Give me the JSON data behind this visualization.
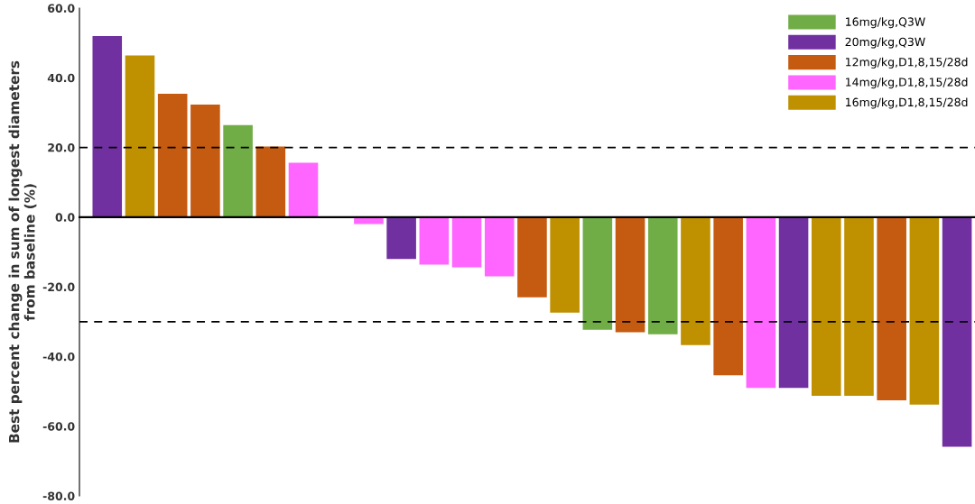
{
  "chart_data": {
    "type": "bar",
    "ylabel": "Best percent change in sum of longest diameters\nfrom baseline (%)",
    "categories": [
      null,
      null,
      null,
      null,
      null,
      null,
      null,
      null,
      null,
      null,
      null,
      null,
      null,
      null,
      null,
      null,
      null,
      null,
      null,
      null,
      null,
      null,
      null,
      null,
      null,
      null,
      null
    ],
    "series": [
      {
        "name": "16mg/kg,Q3W",
        "color": "#70ad47",
        "values": [
          null,
          null,
          null,
          null,
          26.4,
          null,
          null,
          null,
          null,
          null,
          null,
          null,
          null,
          null,
          null,
          -32.3,
          null,
          -33.6,
          null,
          null,
          null,
          null,
          null,
          null,
          null,
          null,
          null
        ]
      },
      {
        "name": "20mg/kg,Q3W",
        "color": "#7030a0",
        "values": [
          52,
          null,
          null,
          null,
          null,
          null,
          null,
          null,
          null,
          -12,
          null,
          null,
          null,
          null,
          null,
          null,
          null,
          null,
          null,
          null,
          null,
          -49,
          null,
          null,
          null,
          null,
          -65.9
        ]
      },
      {
        "name": "12mg/kg,D1,8,15/28d",
        "color": "#c55a11",
        "values": [
          null,
          null,
          35.4,
          32.3,
          null,
          20.3,
          null,
          null,
          null,
          null,
          null,
          null,
          null,
          -23,
          null,
          null,
          -33,
          null,
          null,
          -45.4,
          null,
          null,
          null,
          null,
          -52.6,
          null,
          null
        ]
      },
      {
        "name": "14mg/kg,D1,8,15/28d",
        "color": "#ff66ff",
        "values": [
          null,
          null,
          null,
          null,
          null,
          null,
          15.6,
          null,
          -2,
          null,
          -13.6,
          -14.4,
          -17,
          null,
          null,
          null,
          null,
          null,
          null,
          null,
          -49,
          null,
          null,
          null,
          null,
          null,
          null
        ]
      },
      {
        "name": "16mg/kg,D1,8,15/28d",
        "color": "#bf9000",
        "values": [
          null,
          46.4,
          null,
          null,
          null,
          null,
          null,
          null,
          null,
          null,
          null,
          null,
          null,
          null,
          -27.4,
          null,
          null,
          null,
          -36.7,
          null,
          null,
          null,
          -51.3,
          -51.3,
          null,
          -53.8,
          null
        ]
      }
    ],
    "ylim": [
      -80,
      60
    ],
    "yticks": [
      {
        "value": -80,
        "label": "-80.0"
      },
      {
        "value": -60,
        "label": "-60.0"
      },
      {
        "value": -40,
        "label": "-40.0"
      },
      {
        "value": -20,
        "label": "-20.0"
      },
      {
        "value": 0,
        "label": "0.0"
      },
      {
        "value": 20,
        "label": "20.0"
      },
      {
        "value": 40,
        "label": "40.0"
      },
      {
        "value": 60,
        "label": "60.0"
      }
    ],
    "ref_lines": [
      {
        "axis": "y",
        "value": 20,
        "color": "#000000",
        "line_style": "dashed"
      },
      {
        "axis": "y",
        "value": -30,
        "color": "#000000",
        "line_style": "dashed"
      }
    ],
    "legend": "top right",
    "grid": false
  }
}
